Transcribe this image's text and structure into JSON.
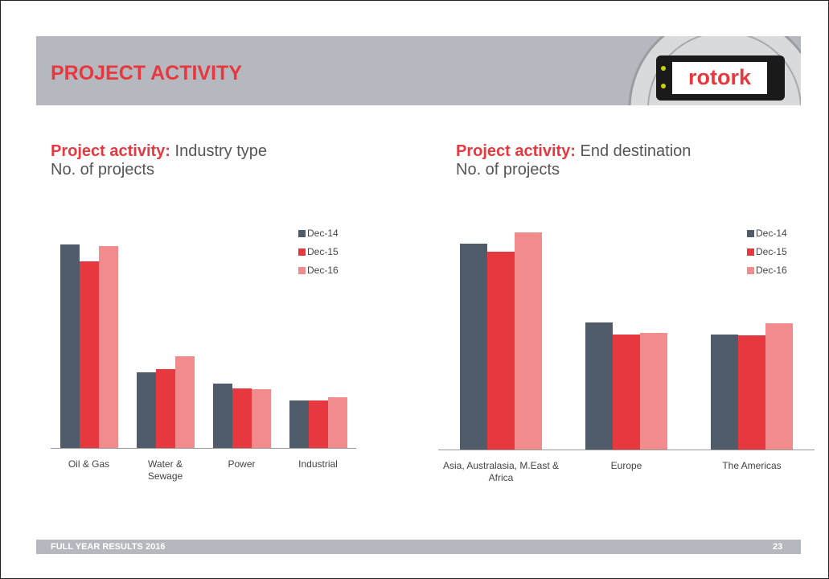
{
  "header": {
    "title": "PROJECT ACTIVITY",
    "logo": "rotork"
  },
  "chart_data": [
    {
      "type": "bar",
      "title_lead": "Project activity:",
      "title": "Industry type",
      "ylabel": "No. of projects",
      "categories": [
        "Oil & Gas",
        "Water & Sewage",
        "Power",
        "Industrial"
      ],
      "series": [
        {
          "name": "Dec-14",
          "color": "#515c6a",
          "values": [
            253,
            94,
            80,
            59
          ]
        },
        {
          "name": "Dec-15",
          "color": "#e8383f",
          "values": [
            232,
            98,
            74,
            59
          ]
        },
        {
          "name": "Dec-16",
          "color": "#f28b8b",
          "values": [
            251,
            114,
            73,
            63
          ]
        }
      ],
      "legend": "upper right"
    },
    {
      "type": "bar",
      "title_lead": "Project activity:",
      "title": "End destination",
      "ylabel": "No. of projects",
      "categories": [
        "Asia, Australasia, M.East & Africa",
        "Europe",
        "The Americas"
      ],
      "series": [
        {
          "name": "Dec-14",
          "color": "#515c6a",
          "values": [
            256,
            158,
            143
          ]
        },
        {
          "name": "Dec-15",
          "color": "#e8383f",
          "values": [
            246,
            143,
            142
          ]
        },
        {
          "name": "Dec-16",
          "color": "#f28b8b",
          "values": [
            270,
            145,
            157
          ]
        }
      ],
      "legend": "upper right"
    }
  ],
  "footer": {
    "text": "FULL YEAR RESULTS 2016",
    "page": "23"
  }
}
